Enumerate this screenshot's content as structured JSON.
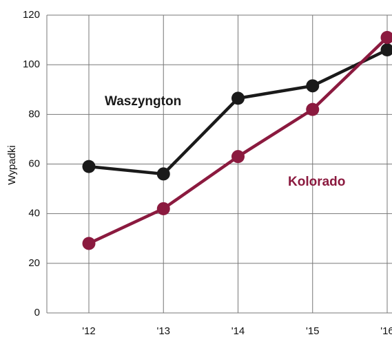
{
  "chart_data": {
    "type": "line",
    "y_label": "Wypadki",
    "categories": [
      "'12",
      "'13",
      "'14",
      "'15",
      "'16"
    ],
    "series": [
      {
        "name": "Waszyngton",
        "color": "#1a1a1a",
        "values": [
          59,
          56,
          86.5,
          91.5,
          106
        ]
      },
      {
        "name": "Kolorado",
        "color": "#8b1a3f",
        "values": [
          28,
          42,
          63,
          82,
          111
        ]
      }
    ],
    "ylim": [
      0,
      120
    ],
    "yticks": [
      0,
      20,
      40,
      60,
      80,
      100,
      120
    ],
    "grid": true
  }
}
